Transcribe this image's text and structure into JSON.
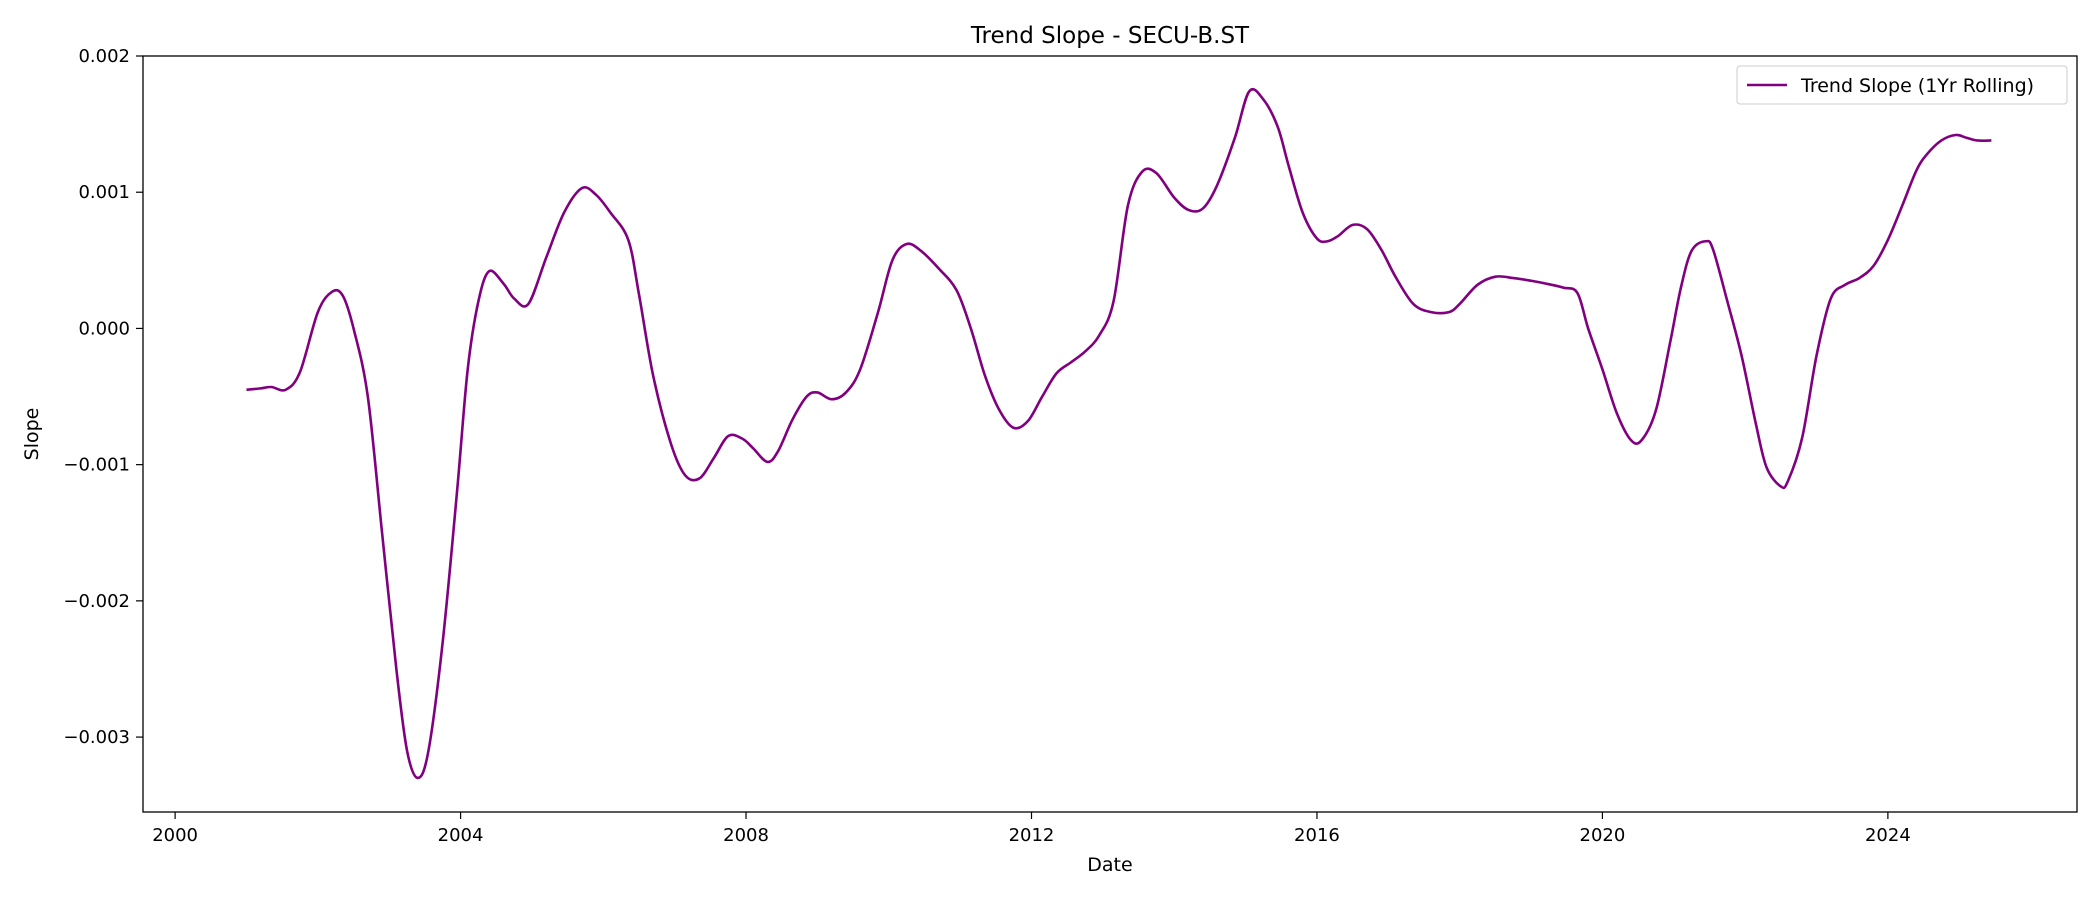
{
  "chart_data": {
    "type": "line",
    "title": "Trend Slope - SECU-B.ST",
    "xlabel": "Date",
    "ylabel": "Slope",
    "xlim": [
      1999.55,
      2026.65
    ],
    "ylim": [
      -0.00355,
      0.002
    ],
    "x_ticks": [
      2000,
      2004,
      2008,
      2012,
      2016,
      2020,
      2024
    ],
    "x_tick_labels": [
      "2000",
      "2004",
      "2008",
      "2012",
      "2016",
      "2020",
      "2024"
    ],
    "y_ticks": [
      0.002,
      0.001,
      0.0,
      -0.001,
      -0.002,
      -0.003
    ],
    "y_tick_labels": [
      "0.002",
      "0.001",
      "0.000",
      "−0.001",
      "−0.002",
      "−0.003"
    ],
    "grid": false,
    "legend_position": "top-right",
    "series": [
      {
        "name": "Trend Slope (1Yr Rolling)",
        "color": "#800080",
        "x": [
          2001.0,
          2001.2,
          2001.35,
          2001.55,
          2001.75,
          2002.0,
          2002.2,
          2002.35,
          2002.5,
          2002.7,
          2002.9,
          2003.1,
          2003.25,
          2003.4,
          2003.55,
          2003.75,
          2003.95,
          2004.1,
          2004.25,
          2004.4,
          2004.6,
          2004.75,
          2004.95,
          2005.2,
          2005.45,
          2005.7,
          2005.9,
          2006.1,
          2006.35,
          2006.5,
          2006.7,
          2006.95,
          2007.15,
          2007.35,
          2007.55,
          2007.75,
          2007.95,
          2008.1,
          2008.3,
          2008.45,
          2008.65,
          2008.85,
          2009.0,
          2009.2,
          2009.4,
          2009.6,
          2009.85,
          2010.05,
          2010.25,
          2010.45,
          2010.7,
          2010.95,
          2011.15,
          2011.35,
          2011.55,
          2011.75,
          2011.95,
          2012.15,
          2012.35,
          2012.55,
          2012.75,
          2012.95,
          2013.15,
          2013.35,
          2013.55,
          2013.75,
          2014.0,
          2014.2,
          2014.4,
          2014.6,
          2014.85,
          2015.05,
          2015.25,
          2015.45,
          2015.6,
          2015.8,
          2016.0,
          2016.15,
          2016.3,
          2016.5,
          2016.7,
          2016.9,
          2017.1,
          2017.35,
          2017.6,
          2017.85,
          2018.0,
          2018.25,
          2018.5,
          2018.75,
          2019.0,
          2019.2,
          2019.45,
          2019.65,
          2019.8,
          2020.0,
          2020.2,
          2020.4,
          2020.55,
          2020.75,
          2020.95,
          2021.1,
          2021.25,
          2021.45,
          2021.55,
          2021.75,
          2021.95,
          2022.15,
          2022.3,
          2022.5,
          2022.6,
          2022.8,
          2023.0,
          2023.2,
          2023.4,
          2023.6,
          2023.8,
          2024.0,
          2024.2,
          2024.4,
          2024.55,
          2024.75,
          2024.95,
          2025.1,
          2025.25,
          2025.45
        ],
        "y": [
          -0.00045,
          -0.00044,
          -0.00043,
          -0.00045,
          -0.00032,
          0.00012,
          0.00027,
          0.00024,
          0.0,
          -0.0005,
          -0.0015,
          -0.0025,
          -0.0031,
          -0.0033,
          -0.0031,
          -0.0023,
          -0.0012,
          -0.0003,
          0.0002,
          0.00042,
          0.00033,
          0.00022,
          0.00018,
          0.00052,
          0.00085,
          0.00103,
          0.00098,
          0.00085,
          0.00065,
          0.00025,
          -0.00035,
          -0.00085,
          -0.00108,
          -0.0011,
          -0.00095,
          -0.00079,
          -0.00081,
          -0.00088,
          -0.00098,
          -0.0009,
          -0.00067,
          -0.0005,
          -0.00047,
          -0.00052,
          -0.00047,
          -0.0003,
          0.00012,
          0.0005,
          0.00062,
          0.00057,
          0.00044,
          0.00028,
          0.0,
          -0.00035,
          -0.0006,
          -0.00073,
          -0.00068,
          -0.0005,
          -0.00033,
          -0.00025,
          -0.00017,
          -5e-05,
          0.0002,
          0.0009,
          0.00115,
          0.00114,
          0.00096,
          0.00087,
          0.00088,
          0.00105,
          0.0014,
          0.00174,
          0.00168,
          0.00148,
          0.0012,
          0.00085,
          0.00066,
          0.00064,
          0.00068,
          0.00076,
          0.00073,
          0.00058,
          0.00038,
          0.00018,
          0.00012,
          0.00012,
          0.00018,
          0.00032,
          0.00038,
          0.00037,
          0.00035,
          0.00033,
          0.0003,
          0.00026,
          0.0,
          -0.0003,
          -0.00062,
          -0.00082,
          -0.00082,
          -0.0006,
          -0.0001,
          0.0003,
          0.00057,
          0.00064,
          0.00058,
          0.0002,
          -0.0002,
          -0.0007,
          -0.00102,
          -0.00116,
          -0.00112,
          -0.0008,
          -0.0002,
          0.00022,
          0.00032,
          0.00037,
          0.00046,
          0.00065,
          0.0009,
          0.00116,
          0.00128,
          0.00138,
          0.00142,
          0.0014,
          0.00138,
          0.00138
        ]
      }
    ]
  }
}
